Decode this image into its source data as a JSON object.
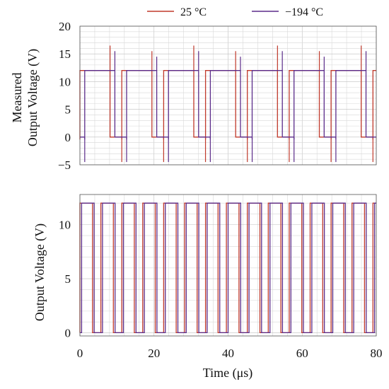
{
  "legend": {
    "items": [
      {
        "label": "25 °C",
        "color": "#c0392b"
      },
      {
        "label": "−194 °C",
        "color": "#5b2c8a"
      }
    ],
    "placement": "top"
  },
  "colors": {
    "series_25C": "#c0392b",
    "series_minus194C": "#5b2c8a",
    "grid": "#d8d8d8"
  },
  "chart_data": [
    {
      "type": "line",
      "title": "",
      "ylabel_lines": [
        "Measured",
        "Output Voltage (V)"
      ],
      "xlabel": "",
      "xlim": [
        0,
        80
      ],
      "ylim": [
        -5,
        20
      ],
      "yticks": [
        -5,
        0,
        5,
        10,
        15,
        20
      ],
      "xticks": [
        0,
        20,
        40,
        60,
        80
      ],
      "show_x_tick_labels": false,
      "grid": true,
      "series": [
        {
          "name": "25 °C",
          "color": "#c0392b",
          "high": 12,
          "low": 0,
          "period": 11.3,
          "duty": 0.72,
          "offset": 0.0,
          "spike_rise": 16.5,
          "spike_fall": -4.5
        },
        {
          "name": "−194 °C",
          "color": "#5b2c8a",
          "high": 12,
          "low": 0,
          "period": 11.3,
          "duty": 0.72,
          "offset": 1.3,
          "spike_rise": 15.5,
          "spike_fall": -4.5
        }
      ]
    },
    {
      "type": "line",
      "title": "",
      "ylabel": "Output Voltage (V)",
      "xlabel": "Time (μs)",
      "xlim": [
        0,
        80
      ],
      "ylim": [
        -0.3,
        12.8
      ],
      "yticks": [
        0,
        5,
        10
      ],
      "xticks": [
        0,
        20,
        40,
        60,
        80
      ],
      "show_x_tick_labels": true,
      "grid": true,
      "series": [
        {
          "name": "25 °C",
          "color": "#c0392b",
          "high": 12,
          "low": 0,
          "period": 5.65,
          "duty": 0.6,
          "offset": 0.0
        },
        {
          "name": "−194 °C",
          "color": "#5b2c8a",
          "high": 12,
          "low": 0,
          "period": 5.65,
          "duty": 0.6,
          "offset": 0.45
        }
      ]
    }
  ]
}
